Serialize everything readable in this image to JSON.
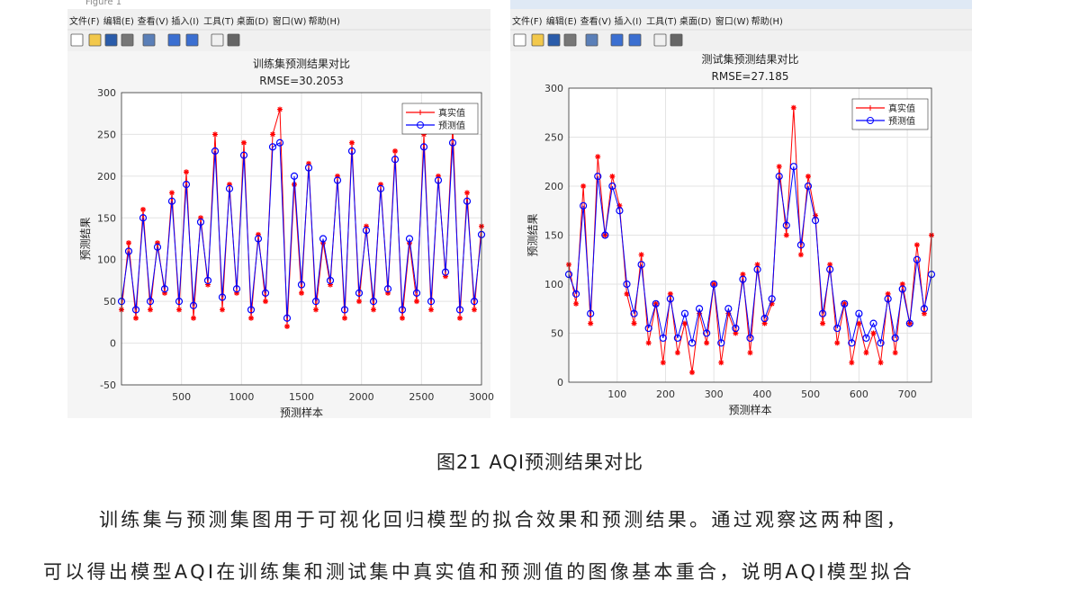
{
  "windows": [
    {
      "title": "Figure 1",
      "menus": [
        "文件(F)",
        "编辑(E)",
        "查看(V)",
        "插入(I)",
        "工具(T)",
        "桌面(D)",
        "窗口(W)",
        "帮助(H)"
      ]
    },
    {
      "menus": [
        "文件(F)",
        "编辑(E)",
        "查看(V)",
        "插入(I)",
        "工具(T)",
        "桌面(D)",
        "窗口(W)",
        "帮助(H)"
      ]
    }
  ],
  "chart_data": [
    {
      "type": "line",
      "title": "训练集预测结果对比",
      "subtitle": "RMSE=30.2053",
      "xlabel": "预测样本",
      "ylabel": "预测结果",
      "xlim": [
        0,
        3000
      ],
      "xticks": [
        500,
        1000,
        1500,
        2000,
        2500,
        3000
      ],
      "ylim": [
        -50,
        300
      ],
      "yticks": [
        -50,
        0,
        50,
        100,
        150,
        200,
        250,
        300
      ],
      "grid": true,
      "legend": "upper right",
      "x": [
        0,
        60,
        120,
        180,
        240,
        300,
        360,
        420,
        480,
        540,
        600,
        660,
        720,
        780,
        840,
        900,
        960,
        1020,
        1080,
        1140,
        1200,
        1260,
        1320,
        1380,
        1440,
        1500,
        1560,
        1620,
        1680,
        1740,
        1800,
        1860,
        1920,
        1980,
        2040,
        2100,
        2160,
        2220,
        2280,
        2340,
        2400,
        2460,
        2520,
        2580,
        2640,
        2700,
        2760,
        2820,
        2880,
        2940,
        3000
      ],
      "series": [
        {
          "name": "真实值",
          "color": "#ff0000",
          "marker": "star",
          "values": [
            40,
            120,
            30,
            160,
            40,
            120,
            60,
            180,
            40,
            205,
            30,
            150,
            70,
            250,
            40,
            190,
            60,
            240,
            30,
            130,
            50,
            250,
            280,
            20,
            190,
            60,
            215,
            40,
            120,
            70,
            200,
            30,
            240,
            50,
            140,
            40,
            190,
            60,
            230,
            30,
            120,
            50,
            250,
            40,
            200,
            80,
            260,
            30,
            180,
            40,
            140
          ]
        },
        {
          "name": "预测值",
          "color": "#0000ff",
          "marker": "circle",
          "values": [
            50,
            110,
            40,
            150,
            50,
            115,
            65,
            170,
            50,
            190,
            45,
            145,
            75,
            230,
            55,
            185,
            65,
            225,
            40,
            125,
            60,
            235,
            240,
            30,
            200,
            70,
            210,
            50,
            125,
            75,
            195,
            40,
            230,
            60,
            135,
            50,
            185,
            65,
            220,
            40,
            125,
            60,
            235,
            50,
            195,
            85,
            240,
            40,
            170,
            50,
            130
          ]
        }
      ]
    },
    {
      "type": "line",
      "title": "测试集预测结果对比",
      "subtitle": "RMSE=27.185",
      "xlabel": "预测样本",
      "ylabel": "预测结果",
      "xlim": [
        0,
        750
      ],
      "xticks": [
        100,
        200,
        300,
        400,
        500,
        600,
        700
      ],
      "ylim": [
        0,
        300
      ],
      "yticks": [
        0,
        50,
        100,
        150,
        200,
        250,
        300
      ],
      "grid": true,
      "legend": "upper right",
      "x": [
        0,
        15,
        30,
        45,
        60,
        75,
        90,
        105,
        120,
        135,
        150,
        165,
        180,
        195,
        210,
        225,
        240,
        255,
        270,
        285,
        300,
        315,
        330,
        345,
        360,
        375,
        390,
        405,
        420,
        435,
        450,
        465,
        480,
        495,
        510,
        525,
        540,
        555,
        570,
        585,
        600,
        615,
        630,
        645,
        660,
        675,
        690,
        705,
        720,
        735,
        750
      ],
      "series": [
        {
          "name": "真实值",
          "color": "#ff0000",
          "marker": "star",
          "values": [
            120,
            80,
            200,
            60,
            230,
            150,
            210,
            180,
            90,
            60,
            130,
            40,
            80,
            20,
            90,
            30,
            60,
            10,
            70,
            40,
            100,
            20,
            70,
            50,
            110,
            30,
            120,
            60,
            80,
            220,
            150,
            280,
            130,
            210,
            170,
            60,
            120,
            40,
            80,
            20,
            60,
            30,
            50,
            20,
            90,
            30,
            100,
            60,
            140,
            70,
            150
          ]
        },
        {
          "name": "预测值",
          "color": "#0000ff",
          "marker": "circle",
          "values": [
            110,
            90,
            180,
            70,
            210,
            150,
            200,
            175,
            100,
            70,
            120,
            55,
            80,
            45,
            85,
            45,
            70,
            40,
            75,
            50,
            100,
            40,
            75,
            55,
            105,
            45,
            115,
            65,
            85,
            210,
            160,
            220,
            140,
            200,
            165,
            70,
            115,
            55,
            80,
            40,
            70,
            45,
            60,
            40,
            85,
            45,
            95,
            60,
            125,
            75,
            110
          ]
        }
      ]
    }
  ],
  "caption": "图21  AQI预测结果对比",
  "paragraph": [
    "训练集与预测集图用于可视化回归模型的拟合效果和预测结果。通过观察这两种图，",
    "可以得出模型AQI在训练集和测试集中真实值和预测值的图像基本重合，说明AQI模型拟合"
  ]
}
